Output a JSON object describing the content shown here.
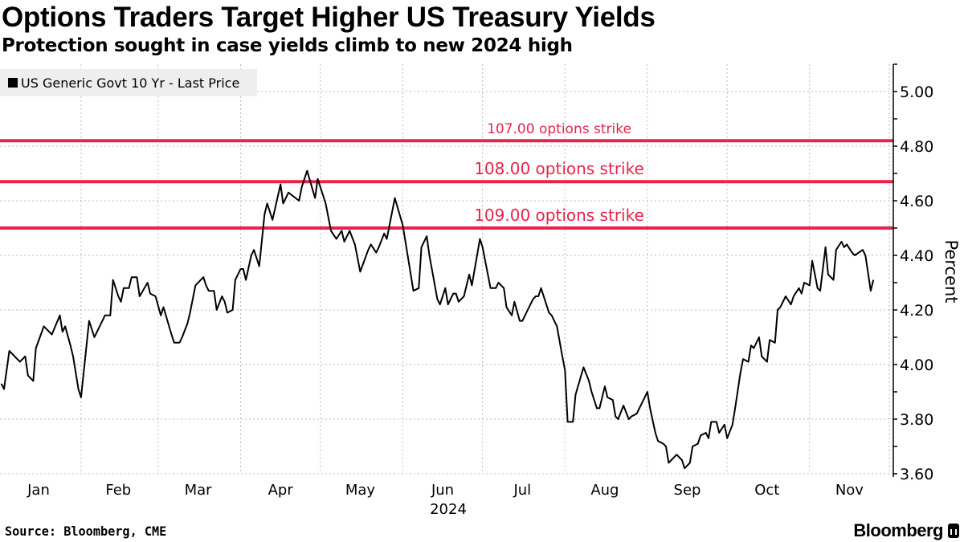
{
  "title": "Options Traders Target Higher US Treasury Yields",
  "subtitle": "Protection sought in case yields climb to new 2024 high",
  "source": "Source: Bloomberg, CME",
  "brand": "Bloomberg",
  "colors": {
    "series": "#000000",
    "strike": "#e8234a",
    "grid": "#bbbbbb",
    "legend_bg": "#eeeeee"
  },
  "chart_data": {
    "type": "line",
    "title": "Options Traders Target Higher US Treasury Yields",
    "xlabel": "2024",
    "ylabel": "Percent",
    "x_units": "day of year 2024",
    "xlim": [
      1.5,
      337.5
    ],
    "ylim": [
      3.6,
      5.1
    ],
    "yticks": [
      3.6,
      3.8,
      4.0,
      4.2,
      4.4,
      4.6,
      4.8,
      5.0
    ],
    "ytick_labels": [
      "3.60",
      "3.80",
      "4.00",
      "4.20",
      "4.40",
      "4.60",
      "4.80",
      "5.00"
    ],
    "month_starts": [
      32,
      61,
      92,
      122,
      153,
      183,
      214,
      245,
      275,
      306,
      336
    ],
    "xticks": [
      {
        "label": "Jan",
        "day": 16
      },
      {
        "label": "Feb",
        "day": 46
      },
      {
        "label": "Mar",
        "day": 76
      },
      {
        "label": "Apr",
        "day": 107
      },
      {
        "label": "May",
        "day": 137
      },
      {
        "label": "Jun",
        "day": 168
      },
      {
        "label": "Jul",
        "day": 198
      },
      {
        "label": "Aug",
        "day": 229
      },
      {
        "label": "Sep",
        "day": 260
      },
      {
        "label": "Oct",
        "day": 290
      },
      {
        "label": "Nov",
        "day": 321
      }
    ],
    "grid": true,
    "legend": {
      "position": "top-left",
      "entries": [
        "US Generic Govt 10 Yr - Last Price"
      ]
    },
    "reference_lines": [
      {
        "label": "107.00 options strike",
        "value": 4.82
      },
      {
        "label": "108.00 options strike",
        "value": 4.67
      },
      {
        "label": "109.00 options strike",
        "value": 4.5
      }
    ],
    "series": [
      {
        "name": "US Generic Govt 10 Yr - Last Price",
        "points": [
          [
            2,
            3.93
          ],
          [
            3,
            3.91
          ],
          [
            5,
            4.05
          ],
          [
            9,
            4.01
          ],
          [
            11,
            4.03
          ],
          [
            12,
            3.96
          ],
          [
            14,
            3.94
          ],
          [
            15,
            4.06
          ],
          [
            18,
            4.14
          ],
          [
            21,
            4.11
          ],
          [
            24,
            4.18
          ],
          [
            25,
            4.12
          ],
          [
            26,
            4.14
          ],
          [
            28,
            4.07
          ],
          [
            29,
            4.03
          ],
          [
            31,
            3.91
          ],
          [
            32,
            3.88
          ],
          [
            35,
            4.16
          ],
          [
            37,
            4.1
          ],
          [
            40,
            4.16
          ],
          [
            41,
            4.18
          ],
          [
            43,
            4.18
          ],
          [
            44,
            4.31
          ],
          [
            46,
            4.25
          ],
          [
            47,
            4.23
          ],
          [
            48,
            4.28
          ],
          [
            50,
            4.28
          ],
          [
            51,
            4.32
          ],
          [
            53,
            4.32
          ],
          [
            54,
            4.25
          ],
          [
            57,
            4.3
          ],
          [
            58,
            4.26
          ],
          [
            60,
            4.25
          ],
          [
            62,
            4.18
          ],
          [
            63,
            4.21
          ],
          [
            66,
            4.11
          ],
          [
            67,
            4.08
          ],
          [
            69,
            4.08
          ],
          [
            70,
            4.1
          ],
          [
            72,
            4.15
          ],
          [
            73,
            4.19
          ],
          [
            75,
            4.29
          ],
          [
            78,
            4.32
          ],
          [
            79,
            4.29
          ],
          [
            80,
            4.27
          ],
          [
            82,
            4.27
          ],
          [
            83,
            4.2
          ],
          [
            85,
            4.25
          ],
          [
            86,
            4.23
          ],
          [
            87,
            4.19
          ],
          [
            89,
            4.2
          ],
          [
            90,
            4.31
          ],
          [
            92,
            4.35
          ],
          [
            93,
            4.35
          ],
          [
            94,
            4.31
          ],
          [
            96,
            4.4
          ],
          [
            97,
            4.42
          ],
          [
            99,
            4.36
          ],
          [
            101,
            4.55
          ],
          [
            102,
            4.59
          ],
          [
            104,
            4.53
          ],
          [
            107,
            4.66
          ],
          [
            108,
            4.59
          ],
          [
            110,
            4.63
          ],
          [
            114,
            4.6
          ],
          [
            115,
            4.65
          ],
          [
            117,
            4.71
          ],
          [
            120,
            4.61
          ],
          [
            121,
            4.68
          ],
          [
            124,
            4.59
          ],
          [
            126,
            4.49
          ],
          [
            128,
            4.46
          ],
          [
            130,
            4.49
          ],
          [
            131,
            4.45
          ],
          [
            133,
            4.49
          ],
          [
            135,
            4.44
          ],
          [
            137,
            4.34
          ],
          [
            140,
            4.42
          ],
          [
            141,
            4.44
          ],
          [
            143,
            4.41
          ],
          [
            144,
            4.43
          ],
          [
            146,
            4.48
          ],
          [
            147,
            4.46
          ],
          [
            150,
            4.61
          ],
          [
            153,
            4.51
          ],
          [
            155,
            4.39
          ],
          [
            156,
            4.33
          ],
          [
            157,
            4.27
          ],
          [
            159,
            4.28
          ],
          [
            160,
            4.43
          ],
          [
            162,
            4.47
          ],
          [
            163,
            4.4
          ],
          [
            166,
            4.24
          ],
          [
            167,
            4.22
          ],
          [
            169,
            4.28
          ],
          [
            170,
            4.22
          ],
          [
            172,
            4.26
          ],
          [
            173,
            4.26
          ],
          [
            174,
            4.23
          ],
          [
            176,
            4.25
          ],
          [
            178,
            4.33
          ],
          [
            179,
            4.29
          ],
          [
            182,
            4.46
          ],
          [
            183,
            4.43
          ],
          [
            186,
            4.28
          ],
          [
            188,
            4.28
          ],
          [
            189,
            4.3
          ],
          [
            191,
            4.28
          ],
          [
            192,
            4.21
          ],
          [
            194,
            4.18
          ],
          [
            195,
            4.23
          ],
          [
            197,
            4.16
          ],
          [
            198,
            4.16
          ],
          [
            200,
            4.2
          ],
          [
            202,
            4.24
          ],
          [
            203,
            4.25
          ],
          [
            204,
            4.25
          ],
          [
            205,
            4.28
          ],
          [
            208,
            4.19
          ],
          [
            209,
            4.18
          ],
          [
            211,
            4.14
          ],
          [
            213,
            4.03
          ],
          [
            214,
            3.98
          ],
          [
            215,
            3.79
          ],
          [
            217,
            3.79
          ],
          [
            218,
            3.89
          ],
          [
            221,
            3.99
          ],
          [
            223,
            3.94
          ],
          [
            224,
            3.9
          ],
          [
            226,
            3.84
          ],
          [
            227,
            3.84
          ],
          [
            229,
            3.92
          ],
          [
            230,
            3.88
          ],
          [
            232,
            3.87
          ],
          [
            233,
            3.81
          ],
          [
            234,
            3.8
          ],
          [
            236,
            3.85
          ],
          [
            238,
            3.8
          ],
          [
            239,
            3.81
          ],
          [
            241,
            3.82
          ],
          [
            242,
            3.84
          ],
          [
            243,
            3.86
          ],
          [
            245,
            3.9
          ],
          [
            246,
            3.84
          ],
          [
            248,
            3.75
          ],
          [
            249,
            3.72
          ],
          [
            251,
            3.71
          ],
          [
            252,
            3.7
          ],
          [
            253,
            3.64
          ],
          [
            256,
            3.67
          ],
          [
            258,
            3.65
          ],
          [
            259,
            3.62
          ],
          [
            261,
            3.64
          ],
          [
            262,
            3.7
          ],
          [
            264,
            3.71
          ],
          [
            265,
            3.74
          ],
          [
            267,
            3.75
          ],
          [
            268,
            3.73
          ],
          [
            269,
            3.79
          ],
          [
            271,
            3.79
          ],
          [
            272,
            3.75
          ],
          [
            274,
            3.78
          ],
          [
            275,
            3.73
          ],
          [
            277,
            3.78
          ],
          [
            278,
            3.84
          ],
          [
            280,
            3.97
          ],
          [
            281,
            4.02
          ],
          [
            283,
            4.01
          ],
          [
            284,
            4.07
          ],
          [
            285,
            4.06
          ],
          [
            287,
            4.1
          ],
          [
            288,
            4.03
          ],
          [
            290,
            4.01
          ],
          [
            291,
            4.09
          ],
          [
            293,
            4.08
          ],
          [
            294,
            4.2
          ],
          [
            295,
            4.21
          ],
          [
            297,
            4.25
          ],
          [
            299,
            4.22
          ],
          [
            300,
            4.25
          ],
          [
            302,
            4.28
          ],
          [
            303,
            4.26
          ],
          [
            304,
            4.3
          ],
          [
            306,
            4.29
          ],
          [
            307,
            4.38
          ],
          [
            309,
            4.28
          ],
          [
            310,
            4.27
          ],
          [
            312,
            4.43
          ],
          [
            313,
            4.33
          ],
          [
            315,
            4.31
          ],
          [
            316,
            4.42
          ],
          [
            318,
            4.45
          ],
          [
            319,
            4.43
          ],
          [
            320,
            4.44
          ],
          [
            322,
            4.41
          ],
          [
            323,
            4.4
          ],
          [
            326,
            4.42
          ],
          [
            327,
            4.4
          ],
          [
            329,
            4.27
          ],
          [
            330,
            4.31
          ]
        ]
      }
    ]
  }
}
